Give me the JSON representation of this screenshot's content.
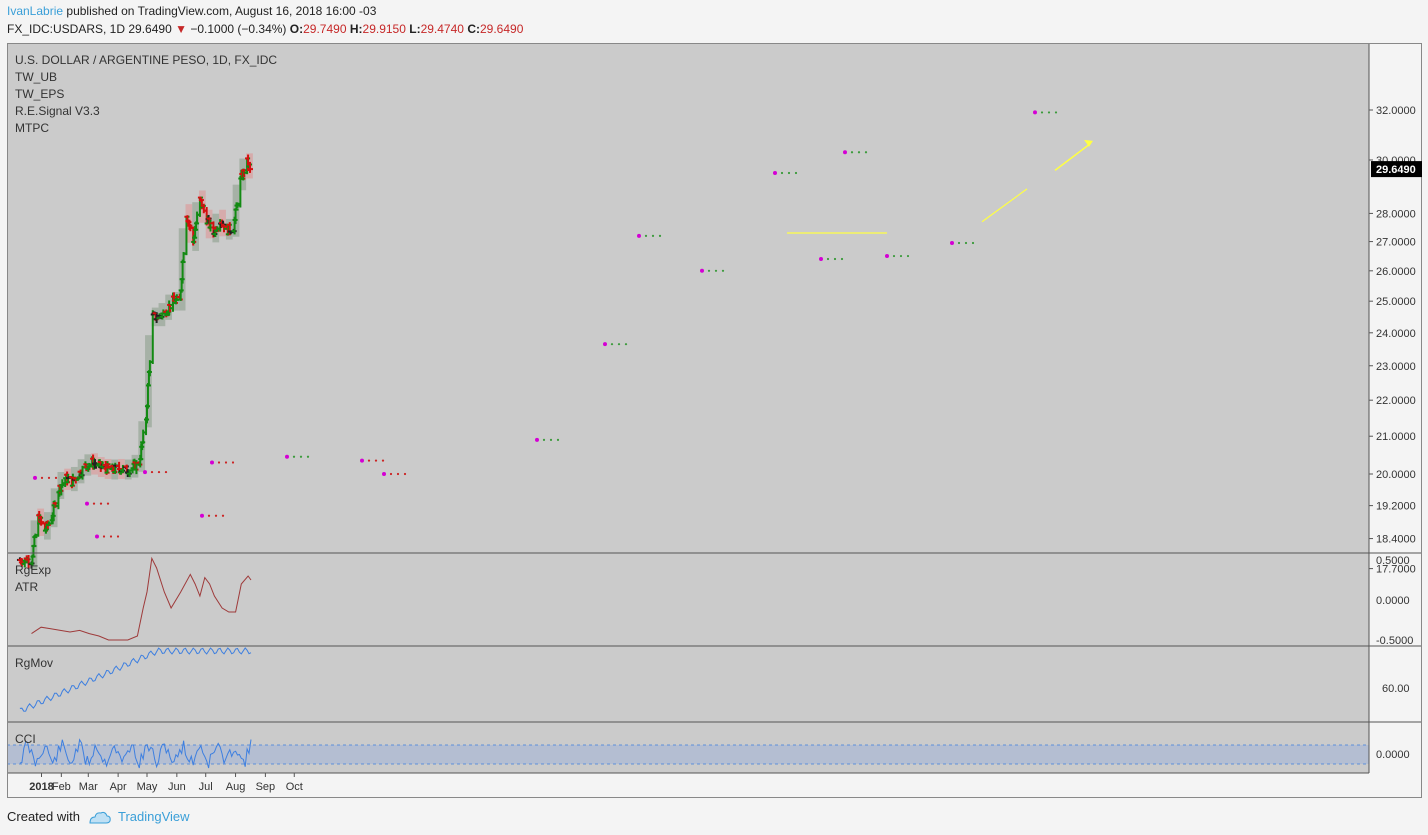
{
  "header": {
    "author": "IvanLabrie",
    "published_text": "published on TradingView.com, August 16, 2018 16:00 -03",
    "symbol": "FX_IDC:USDARS, 1D",
    "last": "29.6490",
    "change": "−0.1000 (−0.34%)",
    "open_label": "O:",
    "open": "29.7490",
    "high_label": "H:",
    "high": "29.9150",
    "low_label": "L:",
    "low": "29.4740",
    "close_label": "C:",
    "close": "29.6490"
  },
  "main_legend": [
    "U.S. DOLLAR / ARGENTINE PESO, 1D, FX_IDC",
    "TW_UB",
    "TW_EPS",
    "R.E.Signal V3.3",
    "MTPC"
  ],
  "price_tag": "29.6490",
  "price_axis_ticks": [
    "32.0000",
    "30.0000",
    "28.0000",
    "27.0000",
    "26.0000",
    "25.0000",
    "24.0000",
    "23.0000",
    "22.0000",
    "21.0000",
    "20.0000",
    "19.2000",
    "18.4000",
    "17.7000"
  ],
  "time_axis_ticks": [
    "2018",
    "Feb",
    "Mar",
    "Apr",
    "May",
    "Jun",
    "Jul",
    "Aug",
    "Sep",
    "Oct"
  ],
  "pane2": {
    "labels": [
      "RgExp",
      "ATR"
    ],
    "ticks": [
      "0.5000",
      "0.0000",
      "-0.5000"
    ]
  },
  "pane3": {
    "labels": [
      "RgMov"
    ],
    "ticks": [
      "60.00"
    ]
  },
  "pane4": {
    "labels": [
      "CCI"
    ],
    "ticks": [
      "0.0000"
    ]
  },
  "footer": {
    "created_with": "Created with",
    "brand": "TradingView"
  },
  "colors": {
    "up": "#138a13",
    "down": "#d40f0f",
    "neutral": "#222222",
    "projection": "#ffff44",
    "atr_line": "#9e3a3a",
    "blue_line": "#3d7fe0",
    "tag_bg": "#000000"
  },
  "chart_data": [
    {
      "type": "line",
      "title": "U.S. DOLLAR / ARGENTINE PESO, 1D, FX_IDC",
      "scale": "log",
      "x": [
        "2018-01-01",
        "2018-01-08",
        "2018-01-15",
        "2018-01-22",
        "2018-01-29",
        "2018-02-05",
        "2018-02-12",
        "2018-02-19",
        "2018-02-26",
        "2018-03-05",
        "2018-03-12",
        "2018-03-19",
        "2018-03-26",
        "2018-04-02",
        "2018-04-09",
        "2018-04-16",
        "2018-04-23",
        "2018-04-30",
        "2018-05-07",
        "2018-05-14",
        "2018-05-21",
        "2018-05-28",
        "2018-06-04",
        "2018-06-11",
        "2018-06-18",
        "2018-06-25",
        "2018-07-02",
        "2018-07-09",
        "2018-07-16",
        "2018-07-23",
        "2018-07-30",
        "2018-08-06",
        "2018-08-13",
        "2018-08-16"
      ],
      "series": [
        {
          "values": [
            17.9,
            18.9,
            18.6,
            18.9,
            19.6,
            19.9,
            19.8,
            20.0,
            20.2,
            20.3,
            20.2,
            20.15,
            20.1,
            20.15,
            20.1,
            20.15,
            20.3,
            21.5,
            24.5,
            24.5,
            24.7,
            25.0,
            25.0,
            28.0,
            27.0,
            28.5,
            27.8,
            27.3,
            27.8,
            27.4,
            27.5,
            29.2,
            29.9,
            29.649
          ]
        }
      ],
      "ylim": [
        17.3,
        32.5
      ]
    },
    {
      "type": "line",
      "title": "RgExp / ATR",
      "x_days": [
        0,
        10,
        20,
        30,
        40,
        50,
        60,
        70,
        80,
        90,
        100,
        110,
        116,
        120,
        125,
        130,
        138,
        145,
        155,
        165,
        170,
        175,
        180,
        185,
        190,
        198,
        205,
        212,
        218,
        225,
        228
      ],
      "series": [
        {
          "values": [
            -0.42,
            -0.34,
            -0.36,
            -0.38,
            -0.4,
            -0.38,
            -0.42,
            -0.45,
            -0.5,
            -0.5,
            -0.5,
            -0.45,
            -0.1,
            0.1,
            0.52,
            0.4,
            0.1,
            -0.1,
            0.1,
            0.32,
            0.2,
            0.05,
            0.28,
            0.2,
            0.05,
            -0.1,
            -0.15,
            -0.15,
            0.2,
            0.3,
            0.25
          ]
        }
      ],
      "ylim": [
        -0.5,
        0.5
      ]
    },
    {
      "type": "line",
      "title": "RgMov",
      "series": [
        {
          "values": []
        }
      ]
    },
    {
      "type": "line",
      "title": "CCI",
      "series": [
        {
          "values": []
        }
      ]
    }
  ]
}
